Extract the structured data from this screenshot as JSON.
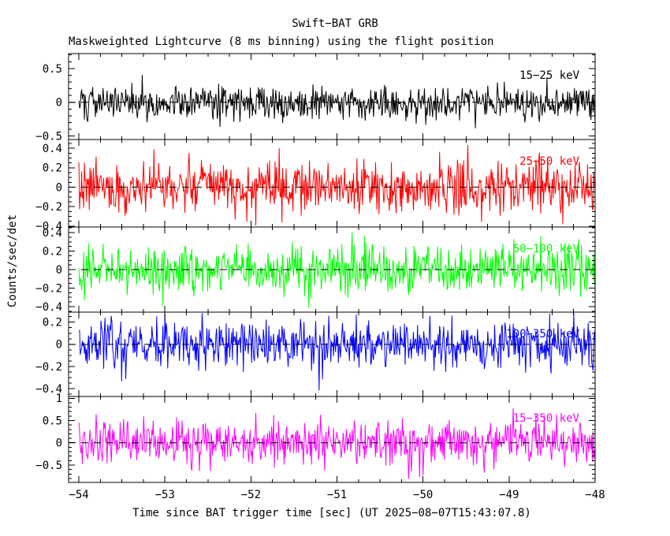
{
  "chart_data": {
    "type": "line",
    "description": "Five vertically stacked mask-weighted lightcurve panels of random noise about zero; 8 ms binning, x from -54 s to -48 s relative to BAT trigger. Each panel is an independent noise series characterized by its sigma/min/max summary.",
    "title": "Swift−BAT GRB",
    "subtitle": "Maskweighted Lightcurve (8 ms binning) using the flight position",
    "xlabel": "Time since BAT trigger time [sec] (UT 2025−08−07T15:43:07.8)",
    "ylabel": "Counts/sec/det",
    "grid": false,
    "legend_position": "none",
    "xlim": [
      -54.12,
      -48.0
    ],
    "x_data_range": [
      -54.0,
      -48.0
    ],
    "bin_seconds": 0.008,
    "n_bins": 750,
    "x_minor_step": 0.25,
    "x_ticks": [
      {
        "v": -54,
        "label": "−54"
      },
      {
        "v": -53,
        "label": "−53"
      },
      {
        "v": -52,
        "label": "−52"
      },
      {
        "v": -51,
        "label": "−51"
      },
      {
        "v": -50,
        "label": "−50"
      },
      {
        "v": -49,
        "label": "−49"
      },
      {
        "v": -48,
        "label": "−48"
      }
    ],
    "zero_line_style": "dashed",
    "panels": [
      {
        "name": "band-15-25",
        "label": "15−25 keV",
        "color": "#000000",
        "ylim": [
          -0.55,
          0.72
        ],
        "y_minor_step": 0.1,
        "y_ticks": [
          {
            "v": 0.5,
            "label": "0.5"
          },
          {
            "v": 0.0,
            "label": "0"
          },
          {
            "v": -0.5,
            "label": "−0.5"
          }
        ],
        "series_summary": {
          "mean": 0.0,
          "sigma": 0.125,
          "min": -0.55,
          "max": 0.55
        },
        "seed": 101
      },
      {
        "name": "band-25-50",
        "label": "25−50 keV",
        "color": "#ff0000",
        "ylim": [
          -0.41,
          0.49
        ],
        "y_minor_step": 0.05,
        "y_ticks": [
          {
            "v": 0.4,
            "label": "0.4"
          },
          {
            "v": 0.2,
            "label": "0.2"
          },
          {
            "v": 0.0,
            "label": "0"
          },
          {
            "v": -0.2,
            "label": "−0.2"
          },
          {
            "v": -0.4,
            "label": "−0.4"
          }
        ],
        "series_summary": {
          "mean": 0.0,
          "sigma": 0.13,
          "min": -0.41,
          "max": 0.47
        },
        "seed": 202
      },
      {
        "name": "band-50-100",
        "label": "50−100 keV",
        "color": "#00ff00",
        "ylim": [
          -0.46,
          0.46
        ],
        "y_minor_step": 0.05,
        "y_ticks": [
          {
            "v": 0.4,
            "label": "0.4"
          },
          {
            "v": 0.2,
            "label": "0.2"
          },
          {
            "v": 0.0,
            "label": "0"
          },
          {
            "v": -0.2,
            "label": "−0.2"
          },
          {
            "v": -0.4,
            "label": "−0.4"
          }
        ],
        "series_summary": {
          "mean": 0.0,
          "sigma": 0.12,
          "min": -0.45,
          "max": 0.45
        },
        "seed": 303
      },
      {
        "name": "band-100-350",
        "label": "100−350 keV",
        "color": "#0000ff",
        "ylim": [
          -0.47,
          0.29
        ],
        "y_minor_step": 0.05,
        "y_ticks": [
          {
            "v": 0.2,
            "label": "0.2"
          },
          {
            "v": 0.0,
            "label": "0"
          },
          {
            "v": -0.2,
            "label": "−0.2"
          },
          {
            "v": -0.4,
            "label": "−0.4"
          }
        ],
        "series_summary": {
          "mean": 0.0,
          "sigma": 0.11,
          "min": -0.46,
          "max": 0.28
        },
        "seed": 404
      },
      {
        "name": "band-15-350",
        "label": "15−350 keV",
        "color": "#ff00ff",
        "ylim": [
          -0.89,
          1.04
        ],
        "y_minor_step": 0.1,
        "y_ticks": [
          {
            "v": 1.0,
            "label": "1"
          },
          {
            "v": 0.5,
            "label": "0.5"
          },
          {
            "v": 0.0,
            "label": "0"
          },
          {
            "v": -0.5,
            "label": "−0.5"
          }
        ],
        "series_summary": {
          "mean": 0.0,
          "sigma": 0.26,
          "min": -0.88,
          "max": 1.0
        },
        "seed": 505
      }
    ]
  },
  "colors": {
    "background": "#ffffff",
    "frame": "#000000",
    "text": "#000000"
  }
}
